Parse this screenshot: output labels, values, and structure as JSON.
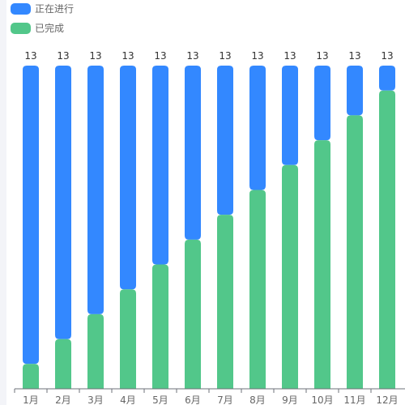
{
  "chart_data": {
    "type": "bar",
    "stacked": true,
    "categories": [
      "1月",
      "2月",
      "3月",
      "4月",
      "5月",
      "6月",
      "7月",
      "8月",
      "9月",
      "10月",
      "11月",
      "12月"
    ],
    "series": [
      {
        "name": "正在进行",
        "color": "#3388ff",
        "values": [
          12,
          11,
          10,
          9,
          8,
          7,
          6,
          5,
          4,
          3,
          2,
          1
        ]
      },
      {
        "name": "已完成",
        "color": "#52c78a",
        "values": [
          1,
          2,
          3,
          4,
          5,
          6,
          7,
          8,
          9,
          10,
          11,
          12
        ]
      }
    ],
    "totals": [
      13,
      13,
      13,
      13,
      13,
      13,
      13,
      13,
      13,
      13,
      13,
      13
    ],
    "ylim": [
      0,
      13
    ],
    "legend_position": "top-left",
    "grid": false
  }
}
